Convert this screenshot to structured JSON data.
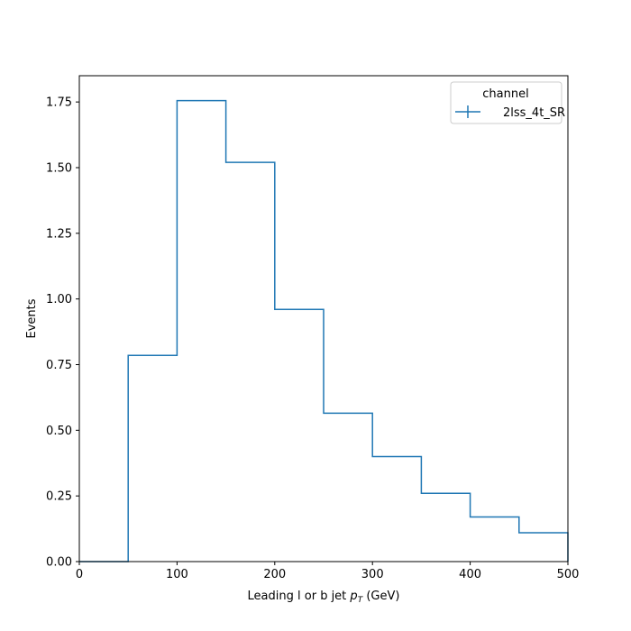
{
  "chart_data": {
    "type": "histogram-step",
    "title": "",
    "xlabel_prefix": "Leading l or b jet ",
    "xlabel_math_base": "p",
    "xlabel_math_sub": "T",
    "xlabel_suffix": " (GeV)",
    "ylabel": "Events",
    "xlim": [
      0,
      500
    ],
    "ylim": [
      0,
      1.85
    ],
    "x_ticks": [
      0,
      100,
      200,
      300,
      400,
      500
    ],
    "x_tick_labels": [
      "0",
      "100",
      "200",
      "300",
      "400",
      "500"
    ],
    "y_ticks": [
      0,
      0.25,
      0.5,
      0.75,
      1.0,
      1.25,
      1.5,
      1.75
    ],
    "y_tick_labels": [
      "0.00",
      "0.25",
      "0.50",
      "0.75",
      "1.00",
      "1.25",
      "1.50",
      "1.75"
    ],
    "bin_edges": [
      0,
      50,
      100,
      150,
      200,
      250,
      300,
      350,
      400,
      450,
      500
    ],
    "series": [
      {
        "name": "2lss_4t_SR",
        "values": [
          0.0,
          0.785,
          1.755,
          1.52,
          0.96,
          0.565,
          0.4,
          0.26,
          0.17,
          0.11
        ]
      }
    ],
    "legend": {
      "title": "channel",
      "placement": "top-right"
    },
    "grid": false,
    "colors": {
      "series": "#1f77b4"
    }
  }
}
